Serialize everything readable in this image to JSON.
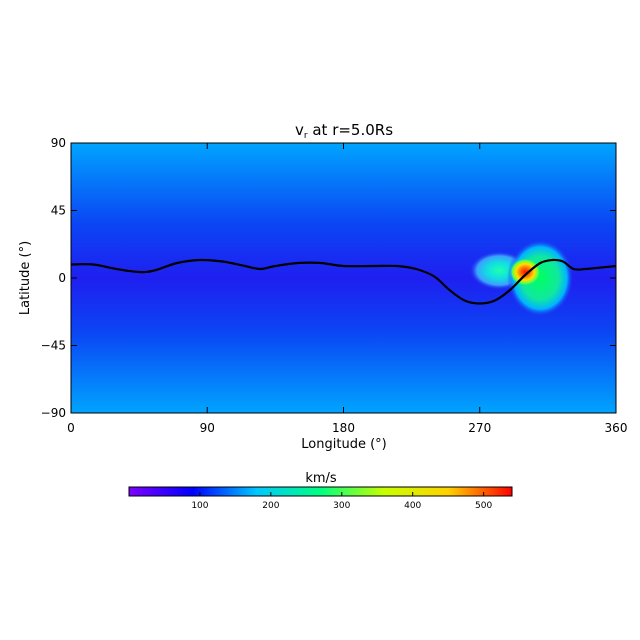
{
  "chart_data": {
    "type": "heatmap",
    "title_prefix": "v",
    "title_subscript": "r",
    "title_suffix": " at r=5.0Rs",
    "xlabel": "Longitude (°)",
    "ylabel": "Latitude (°)",
    "xlim": [
      0,
      360
    ],
    "ylim": [
      -90,
      90
    ],
    "x_ticks": [
      0,
      90,
      180,
      270,
      360
    ],
    "y_ticks": [
      90,
      45,
      0,
      -45,
      -90
    ],
    "y_tick_labels": [
      "90",
      "45",
      "0",
      "−45",
      "−90"
    ],
    "colorbar": {
      "label": "km/s",
      "range": [
        0,
        540
      ],
      "ticks": [
        100,
        200,
        300,
        400,
        500
      ],
      "colormap": [
        "#7f00ff",
        "#0000ff",
        "#00c8ff",
        "#00ff80",
        "#c8ff00",
        "#ffd200",
        "#ff0000"
      ]
    },
    "background_colors": {
      "pole": "#00a4ff",
      "mid": "#0b45f4",
      "equator": "#1f1ff0"
    },
    "neutral_line": {
      "points": [
        [
          0,
          9
        ],
        [
          15,
          9
        ],
        [
          30,
          6
        ],
        [
          45,
          4
        ],
        [
          55,
          5
        ],
        [
          70,
          10
        ],
        [
          85,
          12
        ],
        [
          100,
          11
        ],
        [
          115,
          8
        ],
        [
          125,
          6
        ],
        [
          135,
          8
        ],
        [
          150,
          10
        ],
        [
          165,
          10
        ],
        [
          180,
          8
        ],
        [
          200,
          8
        ],
        [
          215,
          8
        ],
        [
          228,
          6
        ],
        [
          240,
          1
        ],
        [
          250,
          -8
        ],
        [
          260,
          -15
        ],
        [
          270,
          -17
        ],
        [
          280,
          -15
        ],
        [
          290,
          -8
        ],
        [
          300,
          2
        ],
        [
          310,
          10
        ],
        [
          318,
          12
        ],
        [
          325,
          11
        ],
        [
          332,
          6
        ],
        [
          340,
          6
        ],
        [
          350,
          7
        ],
        [
          360,
          8
        ]
      ]
    },
    "fast_wind_regions": [
      {
        "lon": 310,
        "lat": 0,
        "peak_kms": 450
      },
      {
        "lon": 300,
        "lat": 4,
        "peak_kms": 530
      },
      {
        "lon": 283,
        "lat": 5,
        "peak_kms": 250
      }
    ]
  }
}
